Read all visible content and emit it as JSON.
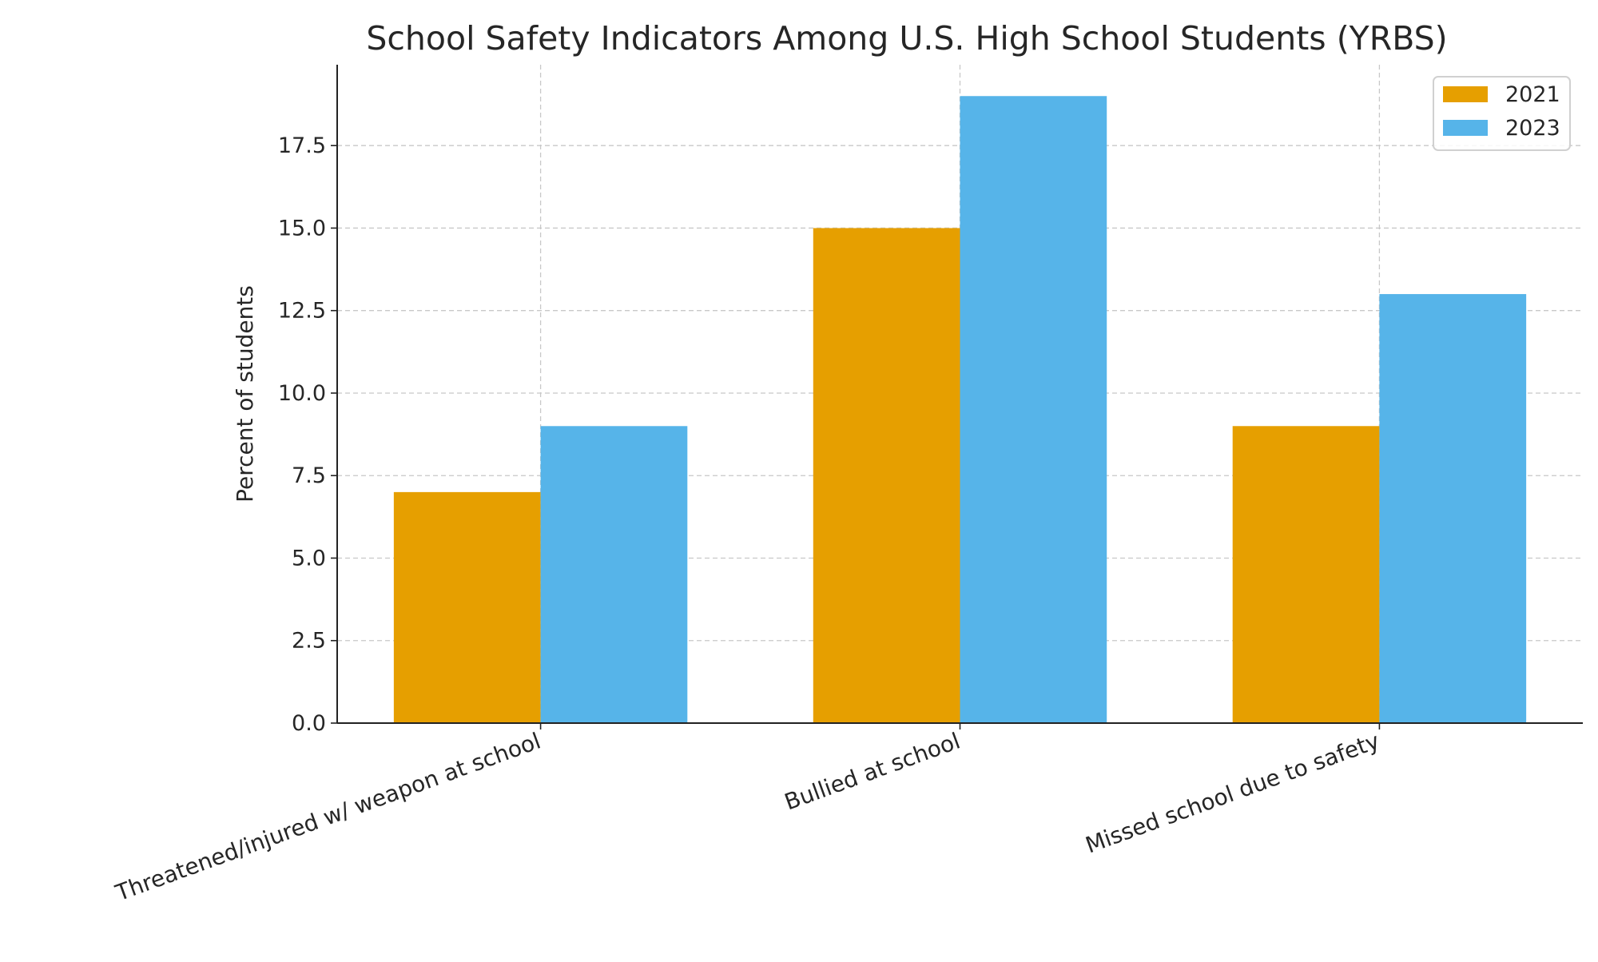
{
  "chart_data": {
    "type": "bar",
    "title": "School Safety Indicators Among U.S. High School Students (YRBS)",
    "xlabel": "",
    "ylabel": "Percent of students",
    "categories": [
      "Threatened/injured w/ weapon at school",
      "Bullied at school",
      "Missed school due to safety"
    ],
    "series": [
      {
        "name": "2021",
        "values": [
          7,
          15,
          9
        ],
        "color": "#E69F00"
      },
      {
        "name": "2023",
        "values": [
          9,
          19,
          13
        ],
        "color": "#56B4E9"
      }
    ],
    "ylim": [
      0,
      19.95
    ],
    "yticks": [
      0,
      2.5,
      5,
      7.5,
      10,
      12.5,
      15,
      17.5
    ],
    "ytick_labels": [
      "0.0",
      "2.5",
      "5.0",
      "7.5",
      "10.0",
      "12.5",
      "15.0",
      "17.5"
    ],
    "grid": true,
    "legend_position": "top-right"
  }
}
